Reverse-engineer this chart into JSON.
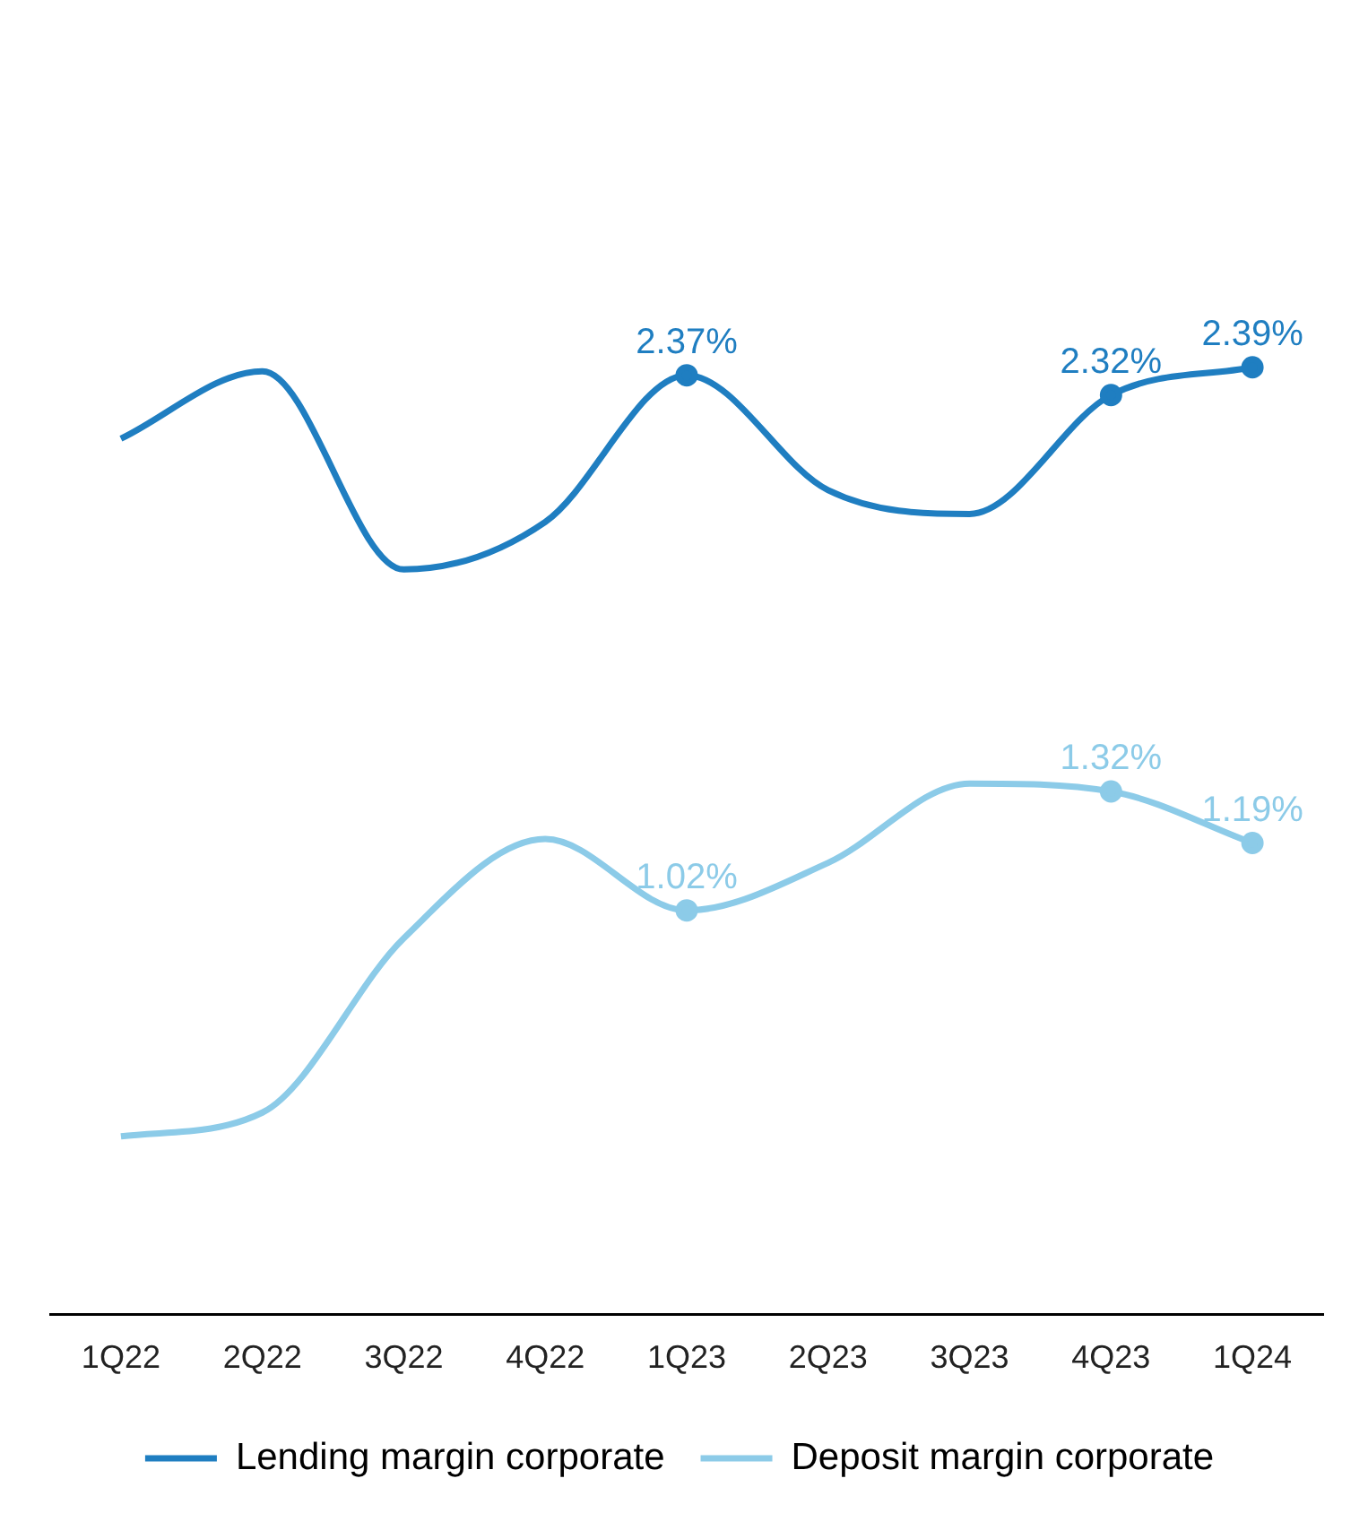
{
  "chart_data": {
    "type": "line",
    "categories": [
      "1Q22",
      "2Q22",
      "3Q22",
      "4Q22",
      "1Q23",
      "2Q23",
      "3Q23",
      "4Q23",
      "1Q24"
    ],
    "series": [
      {
        "name": "Lending margin corporate",
        "color": "#1f7ec1",
        "values": [
          2.21,
          2.38,
          1.88,
          2.0,
          2.37,
          2.08,
          2.02,
          2.32,
          2.39
        ],
        "value_labels": [
          null,
          null,
          null,
          null,
          "2.37%",
          null,
          null,
          "2.32%",
          "2.39%"
        ]
      },
      {
        "name": "Deposit margin corporate",
        "color": "#8ccbe8",
        "values": [
          0.45,
          0.51,
          0.95,
          1.2,
          1.02,
          1.14,
          1.34,
          1.32,
          1.19
        ],
        "value_labels": [
          null,
          null,
          null,
          null,
          "1.02%",
          null,
          null,
          "1.32%",
          "1.19%"
        ]
      }
    ],
    "tick_labels": "x",
    "grid": false,
    "legend": "bottom",
    "line_style": "solid"
  }
}
